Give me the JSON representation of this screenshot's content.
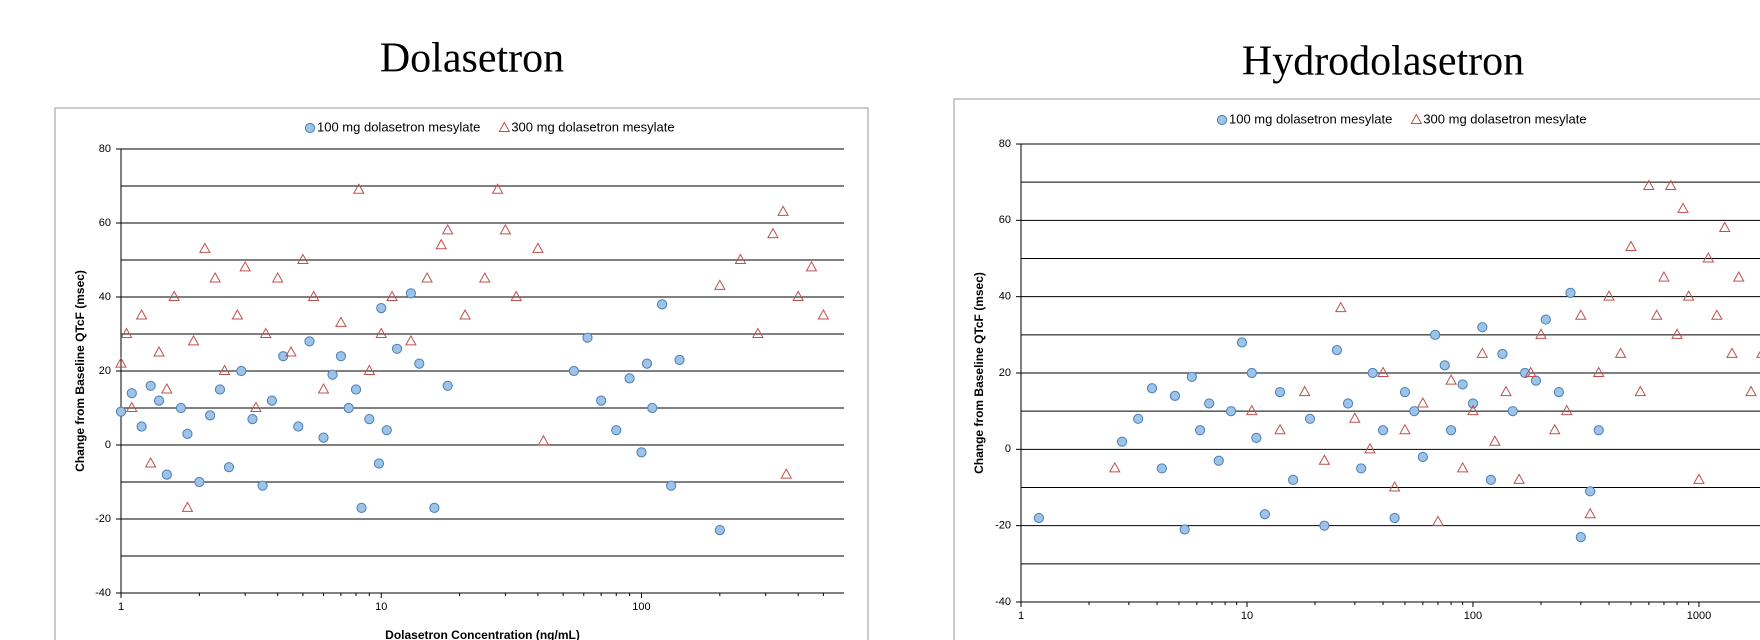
{
  "chart_data": [
    {
      "type": "scatter",
      "title": "Dolasetron",
      "xlabel": "Dolasetron Concentration (ng/mL)",
      "ylabel": "Change from Baseline QTcF (msec)",
      "log_x": true,
      "xlim": [
        1,
        600
      ],
      "xticks": [
        1,
        10,
        100
      ],
      "ylim": [
        -40,
        80
      ],
      "yticks": [
        -40,
        -20,
        0,
        20,
        40,
        60,
        80
      ],
      "ygrid": [
        -30,
        -20,
        -10,
        0,
        10,
        20,
        30,
        40,
        50,
        60,
        70,
        80
      ],
      "legend": "top",
      "series": [
        {
          "name": "100 mg dolasetron mesylate",
          "color": "#4a7ebb",
          "marker": "circle",
          "x": [
            1,
            1.1,
            1.2,
            1.3,
            1.4,
            1.5,
            1.7,
            1.8,
            2,
            2.2,
            2.4,
            2.6,
            2.9,
            3.2,
            3.5,
            3.8,
            4.2,
            4.8,
            5.3,
            6,
            6.5,
            7,
            7.5,
            8,
            8.4,
            9,
            9.8,
            10,
            10.5,
            11.5,
            13,
            14,
            16,
            18,
            55,
            62,
            70,
            80,
            90,
            100,
            105,
            110,
            120,
            130,
            140,
            200
          ],
          "values": [
            9,
            14,
            5,
            16,
            12,
            -8,
            10,
            3,
            -10,
            8,
            15,
            -6,
            20,
            7,
            -11,
            12,
            24,
            5,
            28,
            2,
            19,
            24,
            10,
            15,
            -17,
            7,
            -5,
            37,
            4,
            26,
            41,
            22,
            -17,
            16,
            20,
            29,
            12,
            4,
            18,
            -2,
            22,
            10,
            38,
            -11,
            23,
            -23
          ]
        },
        {
          "name": "300 mg dolasetron mesylate",
          "color": "#c0504d",
          "marker": "triangle",
          "x": [
            1,
            1.05,
            1.1,
            1.2,
            1.3,
            1.4,
            1.5,
            1.6,
            1.8,
            1.9,
            2.1,
            2.3,
            2.5,
            2.8,
            3,
            3.3,
            3.6,
            4,
            4.5,
            5,
            5.5,
            6,
            7,
            8.2,
            9,
            10,
            11,
            13,
            15,
            17,
            18,
            21,
            25,
            28,
            30,
            33,
            40,
            42,
            200,
            240,
            280,
            320,
            350,
            360,
            400,
            450,
            500
          ],
          "values": [
            22,
            30,
            10,
            35,
            -5,
            25,
            15,
            40,
            -17,
            28,
            53,
            45,
            20,
            35,
            48,
            10,
            30,
            45,
            25,
            50,
            40,
            15,
            33,
            69,
            20,
            30,
            40,
            28,
            45,
            54,
            58,
            35,
            45,
            69,
            58,
            40,
            53,
            1,
            43,
            50,
            30,
            57,
            63,
            -8,
            40,
            48,
            35
          ]
        }
      ]
    },
    {
      "type": "scatter",
      "title": "Hydrodolasetron",
      "ylabel": "Change from Baseline QTcF (msec)",
      "log_x": true,
      "xlim": [
        1,
        2000
      ],
      "xticks": [
        1,
        10,
        100,
        1000
      ],
      "ylim": [
        -40,
        80
      ],
      "yticks": [
        -40,
        -20,
        0,
        20,
        40,
        60,
        80
      ],
      "ygrid": [
        -30,
        -20,
        -10,
        0,
        10,
        20,
        30,
        40,
        50,
        60,
        70,
        80
      ],
      "legend": "top",
      "series": [
        {
          "name": "100 mg dolasetron mesylate",
          "color": "#4a7ebb",
          "marker": "circle",
          "x": [
            1.2,
            2.8,
            3.3,
            3.8,
            4.2,
            4.8,
            5.3,
            5.7,
            6.2,
            6.8,
            7.5,
            8.5,
            9.5,
            10.5,
            11,
            12,
            14,
            16,
            19,
            22,
            25,
            28,
            32,
            36,
            40,
            45,
            50,
            55,
            60,
            68,
            75,
            80,
            90,
            100,
            110,
            120,
            135,
            150,
            170,
            190,
            210,
            240,
            270,
            300,
            330,
            360
          ],
          "values": [
            -18,
            2,
            8,
            16,
            -5,
            14,
            -21,
            19,
            5,
            12,
            -3,
            10,
            28,
            20,
            3,
            -17,
            15,
            -8,
            8,
            -20,
            26,
            12,
            -5,
            20,
            5,
            -18,
            15,
            10,
            -2,
            30,
            22,
            5,
            17,
            12,
            32,
            -8,
            25,
            10,
            20,
            18,
            34,
            15,
            41,
            -23,
            -11,
            5
          ]
        },
        {
          "name": "300 mg dolasetron mesylate",
          "color": "#c0504d",
          "marker": "triangle",
          "x": [
            2.6,
            10.5,
            14,
            18,
            22,
            26,
            30,
            35,
            40,
            45,
            50,
            60,
            70,
            80,
            90,
            100,
            110,
            125,
            140,
            160,
            180,
            200,
            230,
            260,
            300,
            330,
            360,
            400,
            450,
            500,
            550,
            600,
            650,
            700,
            750,
            800,
            850,
            900,
            1000,
            1100,
            1200,
            1300,
            1400,
            1500,
            1700,
            1900
          ],
          "values": [
            -5,
            10,
            5,
            15,
            -3,
            37,
            8,
            0,
            20,
            -10,
            5,
            12,
            -19,
            18,
            -5,
            10,
            25,
            2,
            15,
            -8,
            20,
            30,
            5,
            10,
            35,
            -17,
            20,
            40,
            25,
            53,
            15,
            69,
            35,
            45,
            69,
            30,
            63,
            40,
            -8,
            50,
            35,
            58,
            25,
            45,
            15,
            25
          ]
        }
      ]
    }
  ]
}
